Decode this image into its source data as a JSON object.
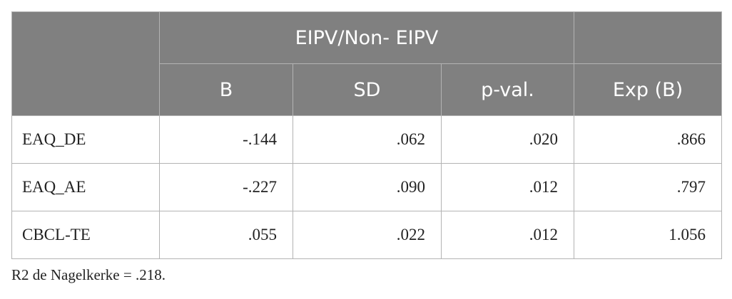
{
  "table": {
    "group_header": "EIPV/Non- EIPV",
    "empty_corner": "",
    "empty_top_right": "",
    "columns": [
      "B",
      "SD",
      "p-val.",
      "Exp (B)"
    ],
    "rows": [
      {
        "label": "EAQ_DE",
        "values": [
          "-.144",
          ".062",
          ".020",
          ".866"
        ]
      },
      {
        "label": "EAQ_AE",
        "values": [
          "-.227",
          ".090",
          ".012",
          ".797"
        ]
      },
      {
        "label": "CBCL-TE",
        "values": [
          ".055",
          ".022",
          ".012",
          "1.056"
        ]
      }
    ]
  },
  "footnote": "R2 de Nagelkerke = .218.",
  "colors": {
    "header_background": "#808080",
    "header_text": "#ffffff",
    "border": "#b3b3b3",
    "body_text": "#222222"
  }
}
